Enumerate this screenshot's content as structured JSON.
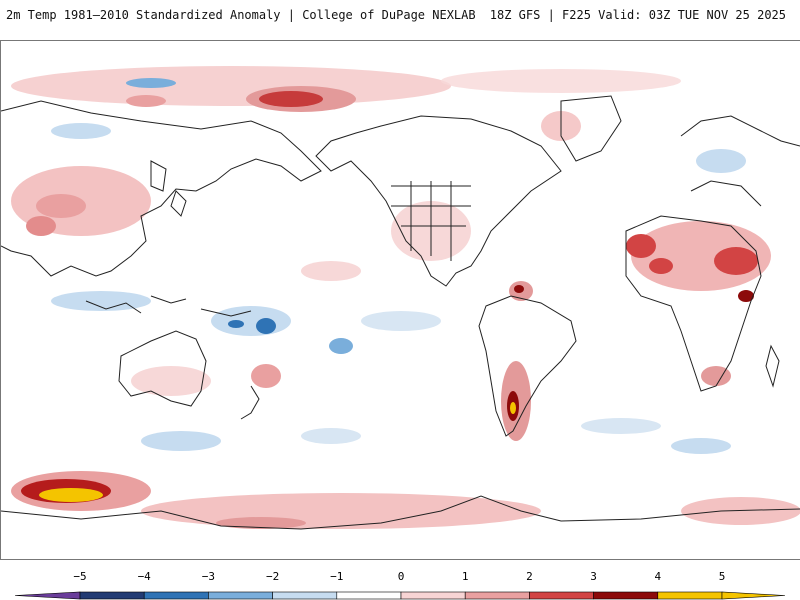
{
  "header": {
    "title_left": "2m Temp 1981–2010 Standardized Anomaly | College of DuPage NEXLAB",
    "title_right": "18Z GFS | F225 Valid: 03Z TUE NOV 25 2025"
  },
  "map": {
    "variable": "2m temperature standardized anomaly",
    "projection": "equirectangular",
    "center_longitude": "Pacific-centered"
  },
  "colorbar": {
    "ticks": [
      "−5",
      "−4",
      "−3",
      "−2",
      "−1",
      "0",
      "1",
      "2",
      "3",
      "4",
      "5"
    ],
    "colors": [
      "#6a3d9a",
      "#223b73",
      "#2f73b5",
      "#7aaedb",
      "#c6dcf0",
      "#ffffff",
      "#f7d4d4",
      "#e9a0a0",
      "#d24444",
      "#8c0a0a",
      "#f4c400"
    ]
  }
}
